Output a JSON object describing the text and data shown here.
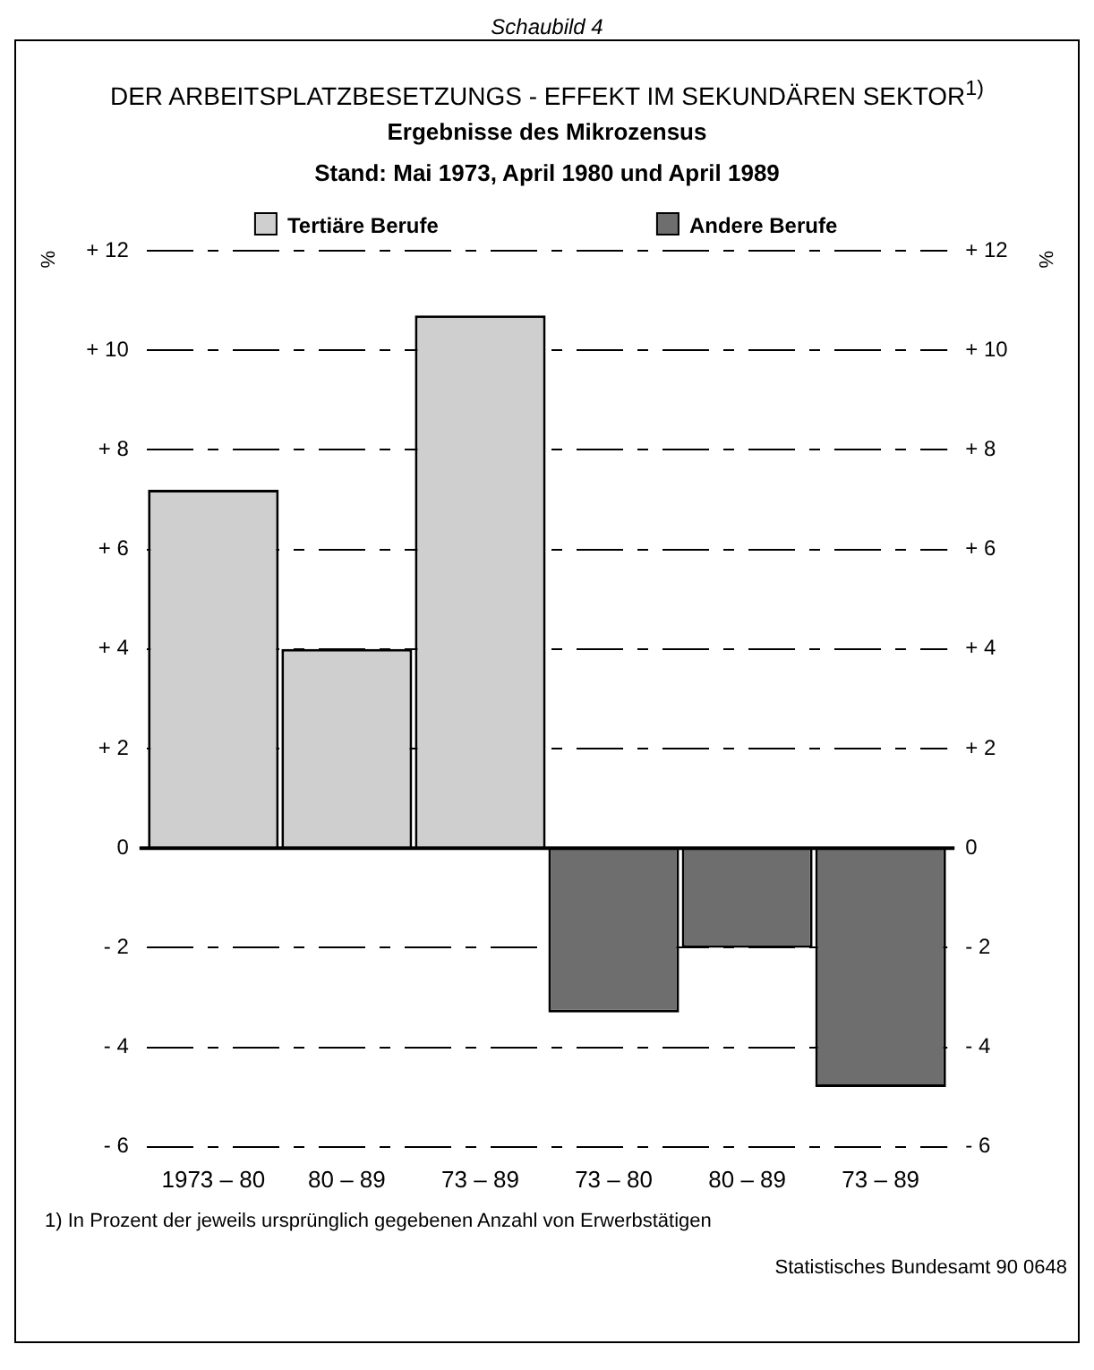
{
  "chart_data": {
    "type": "bar",
    "title": "DER ARBEITSPLATZBESETZUNGS - EFFEKT IM SEKUNDÄREN SEKTOR$^{1)}$",
    "subtitle": "Ergebnisse des Mikrozensus\nStand: Mai 1973, April 1980 und April 1989",
    "ylabel": "%",
    "y2label": "%",
    "categories": [
      "1973 – 80",
      "80 – 89",
      "73 – 89",
      "73 – 80",
      "80 – 89",
      "73 – 89"
    ],
    "series": [
      {
        "name": "Tertiäre Berufe",
        "color": "#cfcfcf",
        "values": [
          7.2,
          4.0,
          10.7,
          null,
          null,
          null
        ]
      },
      {
        "name": "Andere Berufe",
        "color": "#6e6e6e",
        "values": [
          null,
          null,
          null,
          -3.3,
          -2.0,
          -4.8
        ]
      }
    ],
    "ylim": [
      -6,
      12
    ],
    "yticks": [
      {
        "value": -6,
        "label": "- 6"
      },
      {
        "value": -4,
        "label": "- 4"
      },
      {
        "value": -2,
        "label": "- 2"
      },
      0,
      {
        "value": 2,
        "label": "+ 2"
      },
      {
        "value": 4,
        "label": "+ 4"
      },
      {
        "value": 6,
        "label": "+ 6"
      },
      {
        "value": 8,
        "label": "+ 8"
      },
      {
        "value": 10,
        "label": "+ 10"
      },
      {
        "value": 12,
        "label": "+ 12"
      }
    ],
    "y2lim": [
      -6,
      12
    ],
    "y2ticks": [
      {
        "value": -6,
        "label": "- 6"
      },
      {
        "value": -4,
        "label": "- 4"
      },
      {
        "value": -2,
        "label": "- 2"
      },
      0,
      {
        "value": 2,
        "label": "+ 2"
      },
      {
        "value": 4,
        "label": "+ 4"
      },
      {
        "value": 6,
        "label": "+ 6"
      },
      {
        "value": 8,
        "label": "+ 8"
      },
      {
        "value": 10,
        "label": "+ 10"
      },
      {
        "value": 12,
        "label": "+ 12"
      }
    ],
    "grid": "y",
    "legend": "top",
    "annotations": [
      "Schaubild 4",
      "1) In Prozent der jeweils ursprünglich gegebenen Anzahl von Erwerbstätigen",
      "Statistisches Bundesamt 90 0648"
    ]
  }
}
